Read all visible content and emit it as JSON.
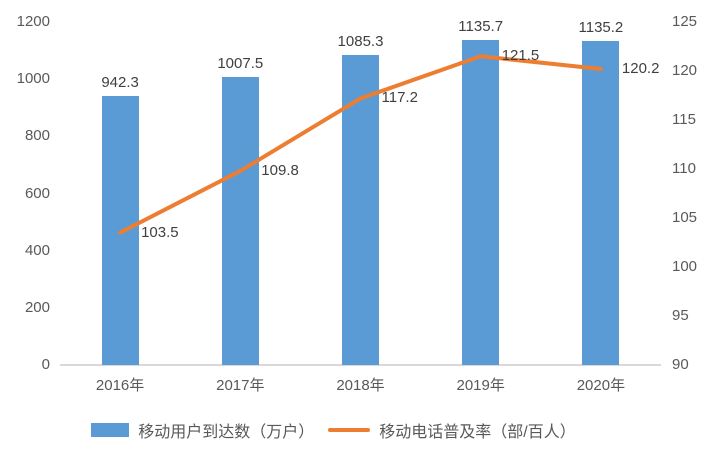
{
  "chart_data": {
    "type": "combo",
    "title": "",
    "categories": [
      "2016年",
      "2017年",
      "2018年",
      "2019年",
      "2020年"
    ],
    "series": [
      {
        "name": "移动用户到达数（万户）",
        "type": "bar",
        "axis": "left",
        "color": "#5B9BD5",
        "values": [
          942.3,
          1007.5,
          1085.3,
          1135.7,
          1135.2
        ]
      },
      {
        "name": "移动电话普及率（部/百人）",
        "type": "line",
        "axis": "right",
        "color": "#ED7D31",
        "values": [
          103.5,
          109.8,
          117.2,
          121.5,
          120.2
        ]
      }
    ],
    "axes": {
      "left": {
        "min": 0,
        "max": 1200,
        "step": 200,
        "ticks": [
          "1200",
          "1000",
          "800",
          "600",
          "400",
          "200",
          "0"
        ]
      },
      "right": {
        "min": 90,
        "max": 125,
        "step": 5,
        "ticks": [
          "125",
          "120",
          "115",
          "110",
          "105",
          "100",
          "95",
          "90"
        ]
      }
    },
    "gridlines": false,
    "legend_position": "bottom",
    "data_labels": true
  },
  "colors": {
    "bar": "#5B9BD5",
    "line": "#ED7D31",
    "axis_line": "#D9D9D9",
    "tick_text": "#595959",
    "label_text": "#404040",
    "background": "#FFFFFF"
  }
}
